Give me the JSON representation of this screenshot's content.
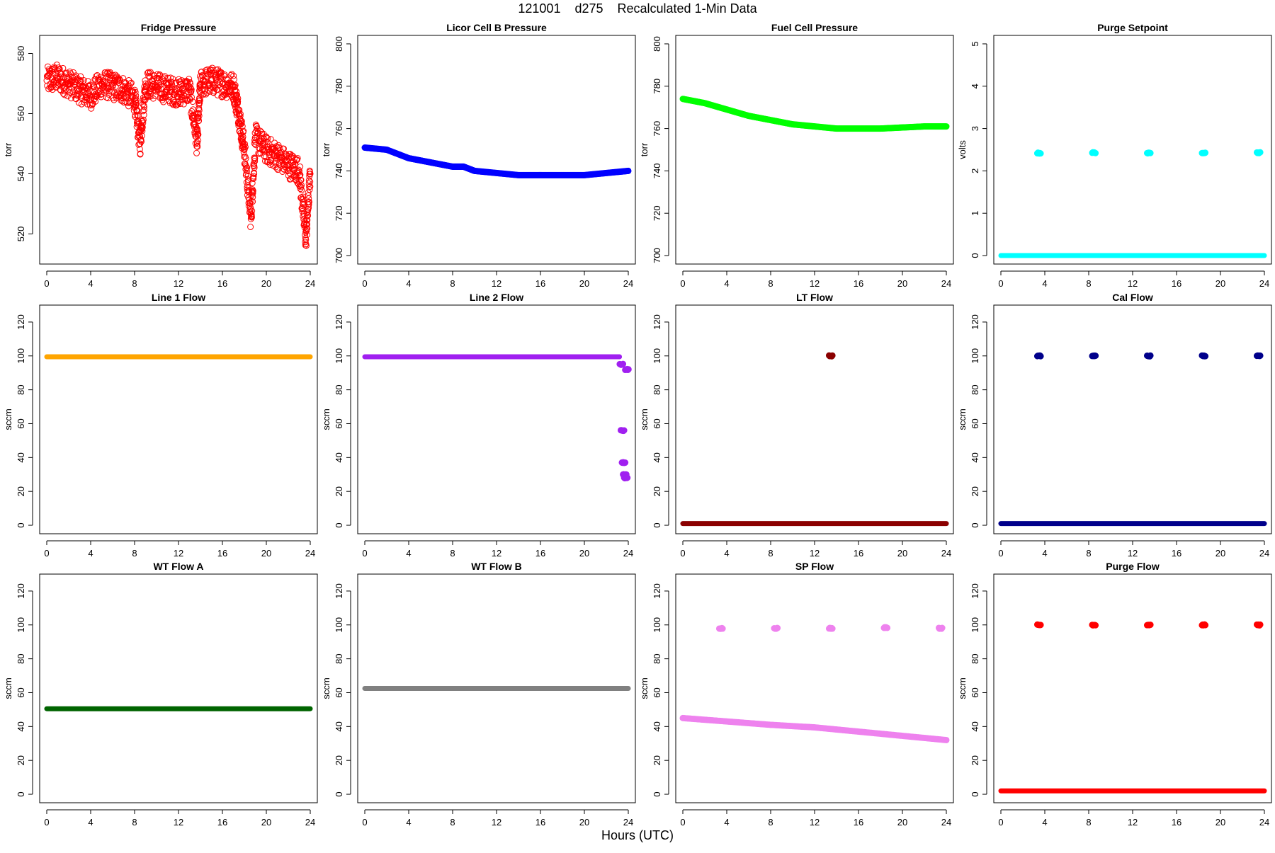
{
  "figure": {
    "title": "121001    d275    Recalculated 1-Min Data",
    "xlabel": "Hours (UTC)"
  },
  "chart_data": [
    {
      "type": "scatter",
      "title": "Fridge Pressure",
      "ylabel": "torr",
      "color": "#ff0000",
      "marker": "open",
      "xlim": [
        0,
        24
      ],
      "ylim": [
        510,
        586
      ],
      "yticks": [
        520,
        540,
        560,
        580
      ],
      "xticks": [
        0,
        4,
        8,
        12,
        16,
        20,
        24
      ],
      "series": [
        {
          "x": [
            0,
            1,
            2,
            3,
            4,
            5,
            6,
            7,
            8,
            8.5,
            9,
            10,
            11,
            12,
            13,
            13.7,
            14,
            15,
            16,
            17,
            17.5,
            18,
            18.6,
            19,
            20,
            21,
            22,
            23,
            23.6,
            24
          ],
          "y": [
            571,
            572,
            570,
            568,
            566,
            570,
            569,
            568,
            565,
            550,
            570,
            569,
            568,
            567,
            568,
            550,
            570,
            571,
            570,
            569,
            560,
            548,
            525,
            552,
            548,
            546,
            543,
            541,
            518,
            540
          ]
        }
      ]
    },
    {
      "type": "scatter",
      "title": "Licor Cell B Pressure",
      "ylabel": "torr",
      "color": "#0000ff",
      "marker": "filled",
      "xlim": [
        0,
        24
      ],
      "ylim": [
        696,
        804
      ],
      "yticks": [
        700,
        720,
        740,
        760,
        780,
        800
      ],
      "xticks": [
        0,
        4,
        8,
        12,
        16,
        20,
        24
      ],
      "series": [
        {
          "x": [
            0,
            2,
            4,
            6,
            8,
            9,
            10,
            12,
            14,
            16,
            18,
            20,
            22,
            24
          ],
          "y": [
            751,
            750,
            746,
            744,
            742,
            742,
            740,
            739,
            738,
            738,
            738,
            738,
            739,
            740
          ]
        }
      ]
    },
    {
      "type": "scatter",
      "title": "Fuel Cell Pressure",
      "ylabel": "torr",
      "color": "#00ff00",
      "marker": "filled",
      "xlim": [
        0,
        24
      ],
      "ylim": [
        696,
        804
      ],
      "yticks": [
        700,
        720,
        740,
        760,
        780,
        800
      ],
      "xticks": [
        0,
        4,
        8,
        12,
        16,
        20,
        24
      ],
      "series": [
        {
          "x": [
            0,
            2,
            4,
            6,
            8,
            10,
            12,
            14,
            16,
            18,
            20,
            22,
            24
          ],
          "y": [
            774,
            772,
            769,
            766,
            764,
            762,
            761,
            760,
            760,
            760,
            760.5,
            761,
            761
          ]
        }
      ]
    },
    {
      "type": "scatter",
      "title": "Purge Setpoint",
      "ylabel": "volts",
      "color": "#00ffff",
      "marker": "filled",
      "xlim": [
        0,
        24
      ],
      "ylim": [
        -0.2,
        5.2
      ],
      "yticks": [
        0,
        1,
        2,
        3,
        4,
        5
      ],
      "xticks": [
        0,
        4,
        8,
        12,
        16,
        20,
        24
      ],
      "series": [
        {
          "x": [
            0,
            24
          ],
          "y": [
            0,
            0
          ]
        },
        {
          "x": [
            3.5,
            8.5,
            13.5,
            18.5,
            23.5
          ],
          "y": [
            2.42,
            2.43,
            2.42,
            2.43,
            2.43
          ]
        }
      ]
    },
    {
      "type": "scatter",
      "title": "Line 1 Flow",
      "ylabel": "sccm",
      "color": "#ffa500",
      "marker": "filled",
      "xlim": [
        0,
        24
      ],
      "ylim": [
        -5,
        130
      ],
      "yticks": [
        0,
        20,
        40,
        60,
        80,
        100,
        120
      ],
      "xticks": [
        0,
        4,
        8,
        12,
        16,
        20,
        24
      ],
      "series": [
        {
          "x": [
            0,
            24
          ],
          "y": [
            99.5,
            99.5
          ]
        }
      ]
    },
    {
      "type": "scatter",
      "title": "Line 2 Flow",
      "ylabel": "sccm",
      "color": "#a020f0",
      "marker": "filled",
      "xlim": [
        0,
        24
      ],
      "ylim": [
        -5,
        130
      ],
      "yticks": [
        0,
        20,
        40,
        60,
        80,
        100,
        120
      ],
      "xticks": [
        0,
        4,
        8,
        12,
        16,
        20,
        24
      ],
      "series": [
        {
          "x": [
            0,
            23.2
          ],
          "y": [
            99.5,
            99.5
          ]
        },
        {
          "x": [
            23.4,
            23.5,
            23.6,
            23.7,
            23.8,
            23.9
          ],
          "y": [
            95,
            56,
            37,
            30,
            28,
            92
          ]
        }
      ]
    },
    {
      "type": "scatter",
      "title": "LT Flow",
      "ylabel": "sccm",
      "color": "#8b0000",
      "marker": "filled",
      "xlim": [
        0,
        24
      ],
      "ylim": [
        -5,
        130
      ],
      "yticks": [
        0,
        20,
        40,
        60,
        80,
        100,
        120
      ],
      "xticks": [
        0,
        4,
        8,
        12,
        16,
        20,
        24
      ],
      "series": [
        {
          "x": [
            0,
            24
          ],
          "y": [
            1,
            1
          ]
        },
        {
          "x": [
            13.5
          ],
          "y": [
            100
          ]
        }
      ]
    },
    {
      "type": "scatter",
      "title": "Cal Flow",
      "ylabel": "sccm",
      "color": "#00008b",
      "marker": "filled",
      "xlim": [
        0,
        24
      ],
      "ylim": [
        -5,
        130
      ],
      "yticks": [
        0,
        20,
        40,
        60,
        80,
        100,
        120
      ],
      "xticks": [
        0,
        4,
        8,
        12,
        16,
        20,
        24
      ],
      "series": [
        {
          "x": [
            0,
            24
          ],
          "y": [
            1,
            1
          ]
        },
        {
          "x": [
            3.5,
            8.5,
            13.5,
            18.5,
            23.5
          ],
          "y": [
            100,
            100,
            100,
            100,
            100
          ]
        }
      ]
    },
    {
      "type": "scatter",
      "title": "WT Flow A",
      "ylabel": "sccm",
      "color": "#006400",
      "marker": "filled",
      "xlim": [
        0,
        24
      ],
      "ylim": [
        -5,
        130
      ],
      "yticks": [
        0,
        20,
        40,
        60,
        80,
        100,
        120
      ],
      "xticks": [
        0,
        4,
        8,
        12,
        16,
        20,
        24
      ],
      "series": [
        {
          "x": [
            0,
            24
          ],
          "y": [
            50.5,
            50.5
          ]
        }
      ]
    },
    {
      "type": "scatter",
      "title": "WT Flow B",
      "ylabel": "sccm",
      "color": "#808080",
      "marker": "filled",
      "xlim": [
        0,
        24
      ],
      "ylim": [
        -5,
        130
      ],
      "yticks": [
        0,
        20,
        40,
        60,
        80,
        100,
        120
      ],
      "xticks": [
        0,
        4,
        8,
        12,
        16,
        20,
        24
      ],
      "series": [
        {
          "x": [
            0,
            24
          ],
          "y": [
            62.5,
            62.5
          ]
        }
      ]
    },
    {
      "type": "scatter",
      "title": "SP Flow",
      "ylabel": "sccm",
      "color": "#ee82ee",
      "marker": "filled",
      "xlim": [
        0,
        24
      ],
      "ylim": [
        -5,
        130
      ],
      "yticks": [
        0,
        20,
        40,
        60,
        80,
        100,
        120
      ],
      "xticks": [
        0,
        4,
        8,
        12,
        16,
        20,
        24
      ],
      "series": [
        {
          "x": [
            0,
            4,
            8,
            12,
            16,
            20,
            24
          ],
          "y": [
            45,
            43,
            41,
            39.5,
            37,
            34.5,
            32
          ]
        },
        {
          "x": [
            3.5,
            8.5,
            13.5,
            18.5,
            23.5
          ],
          "y": [
            98,
            98,
            98,
            98.5,
            98
          ]
        }
      ]
    },
    {
      "type": "scatter",
      "title": "Purge Flow",
      "ylabel": "sccm",
      "color": "#ff0000",
      "marker": "filled",
      "xlim": [
        0,
        24
      ],
      "ylim": [
        -5,
        130
      ],
      "yticks": [
        0,
        20,
        40,
        60,
        80,
        100,
        120
      ],
      "xticks": [
        0,
        4,
        8,
        12,
        16,
        20,
        24
      ],
      "series": [
        {
          "x": [
            0,
            24
          ],
          "y": [
            2,
            2
          ]
        },
        {
          "x": [
            3.5,
            8.5,
            13.5,
            18.5,
            23.5
          ],
          "y": [
            100,
            100,
            100,
            100,
            100
          ]
        }
      ]
    }
  ]
}
